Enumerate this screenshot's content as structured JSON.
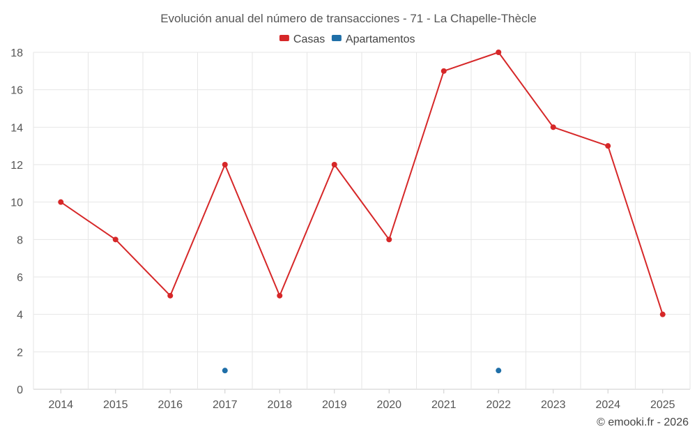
{
  "chart_data": {
    "type": "line",
    "title": "Evolución anual del número de transacciones - 71 - La Chapelle-Thècle",
    "xlabel": "",
    "ylabel": "",
    "categories": [
      "2014",
      "2015",
      "2016",
      "2017",
      "2018",
      "2019",
      "2020",
      "2021",
      "2022",
      "2023",
      "2024",
      "2025"
    ],
    "ylim": [
      0,
      18
    ],
    "yticks": [
      0,
      2,
      4,
      6,
      8,
      10,
      12,
      14,
      16,
      18
    ],
    "grid": true,
    "legend_position": "top-center",
    "series": [
      {
        "name": "Casas",
        "color": "#d62728",
        "values": [
          10,
          8,
          5,
          12,
          5,
          12,
          8,
          17,
          18,
          14,
          13,
          4
        ]
      },
      {
        "name": "Apartamentos",
        "color": "#1f6fa8",
        "values": [
          null,
          null,
          null,
          1,
          null,
          null,
          null,
          null,
          1,
          null,
          null,
          null
        ]
      }
    ]
  },
  "credit": "© emooki.fr - 2026"
}
